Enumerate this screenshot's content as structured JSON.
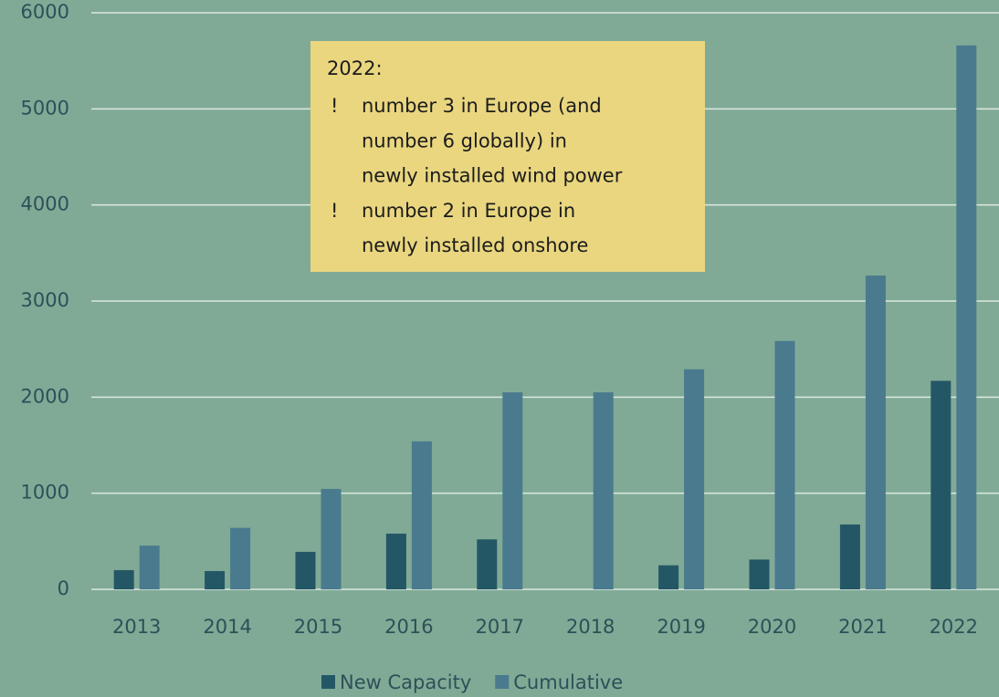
{
  "chart_data": {
    "type": "bar",
    "categories": [
      "2013",
      "2014",
      "2015",
      "2016",
      "2017",
      "2018",
      "2019",
      "2020",
      "2021",
      "2022"
    ],
    "series": [
      {
        "name": "New Capacity",
        "color": "#245766",
        "values": [
          200,
          190,
          390,
          580,
          520,
          0,
          250,
          310,
          675,
          2170
        ]
      },
      {
        "name": "Cumulative",
        "color": "#4a7a8e",
        "values": [
          455,
          640,
          1045,
          1540,
          2050,
          2050,
          2290,
          2585,
          3265,
          5660
        ]
      }
    ],
    "ylim": [
      0,
      6000
    ],
    "yticks": [
      0,
      1000,
      2000,
      3000,
      4000,
      5000,
      6000
    ],
    "grid": true,
    "legend": "bottom",
    "annotation": {
      "title": "2022:",
      "items": [
        {
          "bullet": "!",
          "lines": [
            "number 3 in Europe (and",
            "number 6 globally) in",
            "newly installed wind power"
          ]
        },
        {
          "bullet": "!",
          "lines": [
            "number 2 in Europe in",
            "newly installed onshore"
          ]
        }
      ]
    }
  }
}
